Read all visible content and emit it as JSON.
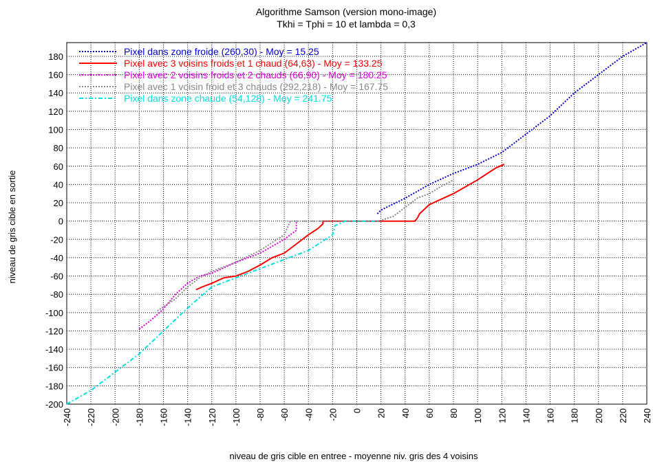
{
  "chart_data": {
    "type": "line",
    "title": "Algorithme Samson (version mono-image)",
    "subtitle": "Tkhi = Tphi = 10 et lambda = 0,3",
    "xlabel": "niveau de gris cible en entree - moyenne niv. gris des 4 voisins",
    "ylabel": "niveau de gris cible en sortie",
    "xlim": [
      -240,
      240
    ],
    "ylim": [
      -200,
      195
    ],
    "xticks": [
      -240,
      -220,
      -200,
      -180,
      -160,
      -140,
      -120,
      -100,
      -80,
      -60,
      -40,
      -20,
      0,
      20,
      40,
      60,
      80,
      100,
      120,
      140,
      160,
      180,
      200,
      220,
      240
    ],
    "yticks": [
      -200,
      -180,
      -160,
      -140,
      -120,
      -100,
      -80,
      -60,
      -40,
      -20,
      0,
      20,
      40,
      60,
      80,
      100,
      120,
      140,
      160,
      180
    ],
    "grid": true,
    "legend_position": "top-left",
    "series": [
      {
        "name": "Pixel dans zone froide (260,30) - Moy = 15.25",
        "color": "#0000cc",
        "style": "dotted",
        "x": [
          17,
          20,
          40,
          60,
          80,
          100,
          120,
          140,
          160,
          180,
          200,
          220,
          240
        ],
        "y": [
          8,
          12,
          25,
          40,
          52,
          62,
          75,
          95,
          115,
          140,
          160,
          180,
          195
        ]
      },
      {
        "name": "Pixel avec 3 voisins froids et 1 chaud (64,63) - Moy = 133.25",
        "color": "#ff0000",
        "style": "solid",
        "x": [
          -133,
          -128,
          -120,
          -110,
          -100,
          -90,
          -80,
          -70,
          -60,
          -50,
          -40,
          -32,
          -28,
          -28,
          48,
          50,
          52,
          60,
          80,
          100,
          115,
          122
        ],
        "y": [
          -75,
          -72,
          -68,
          -62,
          -60,
          -55,
          -48,
          -40,
          -35,
          -25,
          -15,
          -8,
          -3,
          0,
          0,
          3,
          8,
          18,
          30,
          45,
          58,
          62
        ]
      },
      {
        "name": "Pixel avec 2 voisins froids et 2 chauds (66,90) - Moy = 180.25",
        "color": "#e000e0",
        "style": "dotted",
        "x": [
          -180,
          -170,
          -160,
          -150,
          -140,
          -130,
          -120,
          -100,
          -80,
          -60,
          -50,
          -50
        ],
        "y": [
          -118,
          -108,
          -96,
          -80,
          -68,
          -60,
          -57,
          -45,
          -35,
          -20,
          -10,
          0
        ]
      },
      {
        "name": "Pixel avec 1 voisin froid et 3 chauds (292,218) - Moy = 167.75",
        "color": "#888888",
        "style": "dotted",
        "x": [
          -165,
          -150,
          -140,
          -130,
          -120,
          -100,
          -80,
          -60,
          -55,
          -40,
          -20,
          18,
          30,
          40,
          50,
          60,
          70,
          80
        ],
        "y": [
          -98,
          -85,
          -72,
          -62,
          -55,
          -45,
          -32,
          -15,
          0,
          0,
          0,
          0,
          5,
          15,
          25,
          30,
          38,
          45
        ]
      },
      {
        "name": "Pixel dans zone chaude (54,128) - Moy = 241.75",
        "color": "#00e0e0",
        "style": "dashdot",
        "x": [
          -240,
          -220,
          -200,
          -180,
          -160,
          -140,
          -120,
          -100,
          -80,
          -60,
          -40,
          -20,
          -18,
          -10,
          0,
          18
        ],
        "y": [
          -200,
          -185,
          -165,
          -145,
          -120,
          -95,
          -72,
          -62,
          -52,
          -42,
          -32,
          -15,
          -5,
          0,
          0,
          0
        ]
      }
    ]
  }
}
